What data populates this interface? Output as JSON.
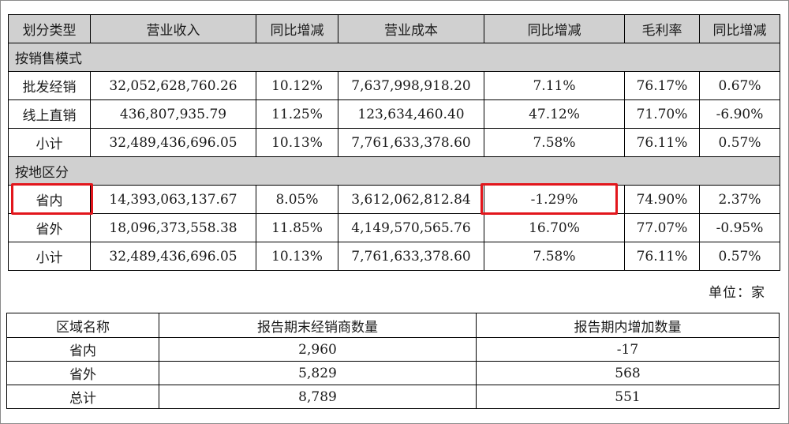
{
  "sales_table": {
    "headers": [
      "划分类型",
      "营业收入",
      "同比增减",
      "营业成本",
      "同比增减",
      "毛利率",
      "同比增减"
    ],
    "sections": [
      {
        "title": "按销售模式",
        "rows": [
          [
            "批发经销",
            "32,052,628,760.26",
            "10.12%",
            "7,637,998,918.20",
            "7.11%",
            "76.17%",
            "0.67%"
          ],
          [
            "线上直销",
            "436,807,935.79",
            "11.25%",
            "123,634,460.40",
            "47.12%",
            "71.70%",
            "-6.90%"
          ],
          [
            "小计",
            "32,489,436,696.05",
            "10.13%",
            "7,761,633,378.60",
            "7.58%",
            "76.11%",
            "0.57%"
          ]
        ]
      },
      {
        "title": "按地区分",
        "rows": [
          [
            "省内",
            "14,393,063,137.67",
            "8.05%",
            "3,612,062,812.84",
            "-1.29%",
            "74.90%",
            "2.37%"
          ],
          [
            "省外",
            "18,096,373,558.38",
            "11.85%",
            "4,149,570,565.76",
            "16.70%",
            "77.07%",
            "-0.95%"
          ],
          [
            "小计",
            "32,489,436,696.05",
            "10.13%",
            "7,761,633,378.60",
            "7.58%",
            "76.11%",
            "0.57%"
          ]
        ]
      }
    ]
  },
  "unit_label": "单位：家",
  "dealer_table": {
    "headers": [
      "区域名称",
      "报告期末经销商数量",
      "报告期内增加数量"
    ],
    "rows": [
      [
        "省内",
        "2,960",
        "-17"
      ],
      [
        "省外",
        "5,829",
        "568"
      ],
      [
        "总计",
        "8,789",
        "551"
      ]
    ]
  },
  "highlight_color": "#e2161c"
}
